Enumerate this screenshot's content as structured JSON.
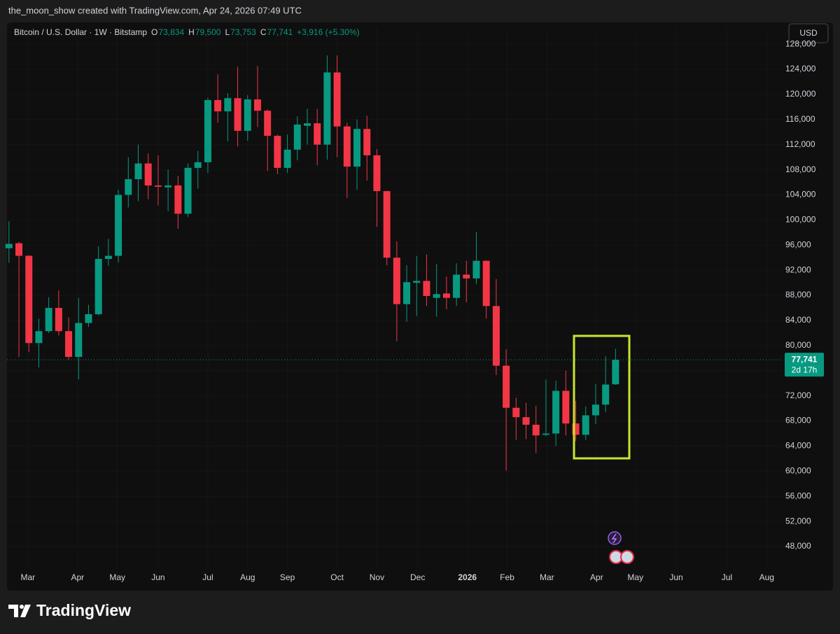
{
  "header": {
    "attribution": "the_moon_show created with TradingView.com, Apr 24, 2026 07:49 UTC"
  },
  "currency_button": "USD",
  "footer": {
    "brand": "TradingView"
  },
  "chart_data": {
    "type": "candlestick",
    "legend": {
      "symbol": "Bitcoin / U.S. Dollar · 1W · Bitstamp",
      "fields": [
        {
          "key": "O",
          "value": "73,834"
        },
        {
          "key": "H",
          "value": "79,500"
        },
        {
          "key": "L",
          "value": "73,753"
        },
        {
          "key": "C",
          "value": "77,741"
        }
      ],
      "change": "+3,916 (+5.30%)"
    },
    "up_color": "#089981",
    "down_color": "#f23645",
    "series": {
      "open": [
        95500,
        96300,
        94300,
        80400,
        82300,
        86000,
        82300,
        78200,
        83600,
        85000,
        93800,
        94300,
        104000,
        106500,
        109000,
        105500,
        105200,
        105500,
        101000,
        108300,
        109200,
        119100,
        117300,
        119400,
        114200,
        119200,
        117400,
        113400,
        108300,
        111200,
        115000,
        115400,
        112000,
        123500,
        114900,
        108500,
        114500,
        110300,
        104600,
        94000,
        86600,
        90000,
        90300,
        87600,
        88300,
        87600,
        91300,
        90700,
        93500,
        86300,
        76800,
        70100,
        68600,
        67400,
        65800,
        66000,
        72800,
        67600,
        65800,
        68900,
        70600,
        73834
      ],
      "high": [
        99800,
        96500,
        94400,
        84300,
        87700,
        88800,
        84500,
        87600,
        86500,
        95800,
        97000,
        104800,
        110000,
        112000,
        110600,
        110300,
        108000,
        107000,
        109000,
        111000,
        119500,
        123200,
        120200,
        124400,
        119900,
        124500,
        117600,
        113600,
        113600,
        116500,
        117700,
        117700,
        126200,
        126200,
        115500,
        116000,
        116600,
        111300,
        104600,
        96600,
        92800,
        94300,
        94500,
        93000,
        91000,
        93100,
        93500,
        98100,
        93600,
        90600,
        79400,
        71700,
        70900,
        70400,
        74600,
        74400,
        76000,
        71200,
        70300,
        73900,
        78300,
        79500
      ],
      "low": [
        93200,
        78200,
        79000,
        76500,
        82000,
        81600,
        77700,
        74600,
        83000,
        84800,
        92700,
        93200,
        102000,
        103000,
        103300,
        102300,
        101400,
        98600,
        100500,
        105000,
        107500,
        115500,
        112500,
        111700,
        112600,
        114800,
        107800,
        107300,
        107500,
        109500,
        112000,
        108700,
        109600,
        110000,
        103500,
        104800,
        106300,
        98900,
        92800,
        80700,
        83800,
        84700,
        86300,
        84600,
        85800,
        86300,
        86900,
        89800,
        84300,
        75300,
        60100,
        65000,
        65100,
        62900,
        65600,
        64000,
        65700,
        64800,
        65000,
        67500,
        69400,
        73753
      ],
      "close": [
        96200,
        94300,
        80400,
        82300,
        86000,
        82300,
        78200,
        83600,
        85000,
        93800,
        94300,
        104000,
        106500,
        109000,
        105500,
        105300,
        105500,
        101000,
        108300,
        109200,
        119100,
        117300,
        119400,
        114200,
        119200,
        117400,
        113400,
        108300,
        111200,
        115200,
        115400,
        112000,
        123500,
        114900,
        108500,
        114500,
        110300,
        104600,
        94000,
        86600,
        90100,
        90300,
        87900,
        88200,
        87600,
        91300,
        90700,
        93500,
        86300,
        76800,
        70100,
        68600,
        67400,
        65700,
        66000,
        72800,
        67600,
        65800,
        68900,
        70600,
        73800,
        77741
      ]
    },
    "price_line": {
      "value": 77741,
      "label": "77,741",
      "countdown": "2d 17h"
    },
    "xlim": [
      -0.2,
      77.8
    ],
    "xticks": [
      {
        "value": 1.9,
        "label": "Mar"
      },
      {
        "value": 6.9,
        "label": "Apr"
      },
      {
        "value": 10.9,
        "label": "May"
      },
      {
        "value": 15.0,
        "label": "Jun"
      },
      {
        "value": 20.0,
        "label": "Jul"
      },
      {
        "value": 24.0,
        "label": "Aug"
      },
      {
        "value": 28.0,
        "label": "Sep"
      },
      {
        "value": 33.0,
        "label": "Oct"
      },
      {
        "value": 37.0,
        "label": "Nov"
      },
      {
        "value": 41.1,
        "label": "Dec"
      },
      {
        "value": 46.1,
        "label": "2026"
      },
      {
        "value": 50.1,
        "label": "Feb"
      },
      {
        "value": 54.1,
        "label": "Mar"
      },
      {
        "value": 59.1,
        "label": "Apr"
      },
      {
        "value": 63.0,
        "label": "May"
      },
      {
        "value": 67.1,
        "label": "Jun"
      },
      {
        "value": 72.2,
        "label": "Jul"
      },
      {
        "value": 76.2,
        "label": "Aug"
      }
    ],
    "ylim": [
      44550,
      130575
    ],
    "yticks": [
      {
        "value": 48000,
        "label": "48,000"
      },
      {
        "value": 52000,
        "label": "52,000"
      },
      {
        "value": 56000,
        "label": "56,000"
      },
      {
        "value": 60000,
        "label": "60,000"
      },
      {
        "value": 64000,
        "label": "64,000"
      },
      {
        "value": 68000,
        "label": "68,000"
      },
      {
        "value": 72000,
        "label": "72,000"
      },
      {
        "value": 76000,
        "label": "76,000"
      },
      {
        "value": 80000,
        "label": "80,000"
      },
      {
        "value": 84000,
        "label": "84,000"
      },
      {
        "value": 88000,
        "label": "88,000"
      },
      {
        "value": 92000,
        "label": "92,000"
      },
      {
        "value": 96000,
        "label": "96,000"
      },
      {
        "value": 100000,
        "label": "100,000"
      },
      {
        "value": 104000,
        "label": "104,000"
      },
      {
        "value": 108000,
        "label": "108,000"
      },
      {
        "value": 112000,
        "label": "112,000"
      },
      {
        "value": 116000,
        "label": "116,000"
      },
      {
        "value": 120000,
        "label": "120,000"
      },
      {
        "value": 124000,
        "label": "124,000"
      },
      {
        "value": 128000,
        "label": "128,000"
      }
    ],
    "grid": true
  }
}
